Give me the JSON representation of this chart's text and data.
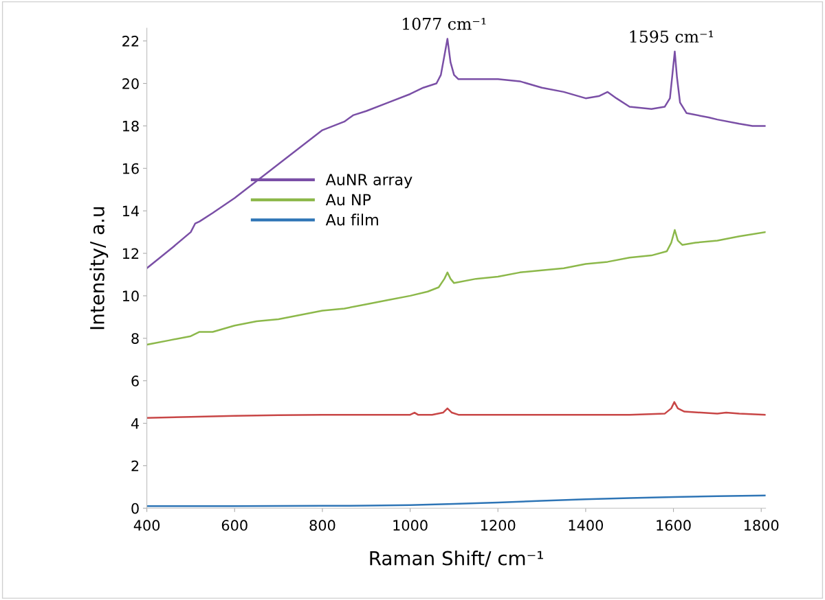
{
  "chart_data": {
    "type": "line",
    "xlabel": "Raman Shift/ cm⁻¹",
    "ylabel": "Intensity/ a.u",
    "xlim": [
      400,
      1810
    ],
    "ylim": [
      0,
      22.6
    ],
    "xticks": [
      400,
      600,
      800,
      1000,
      1200,
      1400,
      1600,
      1800
    ],
    "yticks": [
      0,
      2,
      4,
      6,
      8,
      10,
      12,
      14,
      16,
      18,
      20,
      22
    ],
    "grid": false,
    "legend": "center",
    "marker": "none",
    "line_style": "solid",
    "annotations": [
      {
        "text": "1077 cm⁻¹",
        "x": 1077,
        "y": 22.1
      },
      {
        "text": "1595 cm⁻¹",
        "x": 1595,
        "y": 21.5
      }
    ],
    "series": [
      {
        "name": "AuNR array",
        "color": "#7a4fa6",
        "x": [
          400,
          430,
          460,
          500,
          510,
          520,
          550,
          600,
          650,
          700,
          750,
          800,
          850,
          870,
          900,
          950,
          1000,
          1030,
          1060,
          1070,
          1078,
          1085,
          1092,
          1100,
          1110,
          1150,
          1200,
          1250,
          1300,
          1350,
          1400,
          1430,
          1450,
          1470,
          1500,
          1550,
          1580,
          1592,
          1598,
          1603,
          1608,
          1615,
          1630,
          1680,
          1700,
          1750,
          1780,
          1810
        ],
        "values": [
          11.3,
          11.8,
          12.3,
          13.0,
          13.4,
          13.5,
          13.9,
          14.6,
          15.4,
          16.2,
          17.0,
          17.8,
          18.2,
          18.5,
          18.7,
          19.1,
          19.5,
          19.8,
          20.0,
          20.4,
          21.3,
          22.1,
          21.0,
          20.4,
          20.2,
          20.2,
          20.2,
          20.1,
          19.8,
          19.6,
          19.3,
          19.4,
          19.6,
          19.3,
          18.9,
          18.8,
          18.9,
          19.3,
          20.5,
          21.5,
          20.3,
          19.1,
          18.6,
          18.4,
          18.3,
          18.1,
          18.0,
          18.0
        ]
      },
      {
        "name": "Au NP",
        "color": "#8cb84a",
        "x": [
          400,
          450,
          500,
          520,
          550,
          600,
          650,
          700,
          750,
          800,
          850,
          900,
          950,
          1000,
          1040,
          1065,
          1078,
          1085,
          1092,
          1100,
          1150,
          1200,
          1250,
          1300,
          1350,
          1400,
          1450,
          1500,
          1550,
          1585,
          1595,
          1603,
          1610,
          1620,
          1650,
          1700,
          1750,
          1810
        ],
        "values": [
          7.7,
          7.9,
          8.1,
          8.3,
          8.3,
          8.6,
          8.8,
          8.9,
          9.1,
          9.3,
          9.4,
          9.6,
          9.8,
          10.0,
          10.2,
          10.4,
          10.8,
          11.1,
          10.8,
          10.6,
          10.8,
          10.9,
          11.1,
          11.2,
          11.3,
          11.5,
          11.6,
          11.8,
          11.9,
          12.1,
          12.5,
          13.1,
          12.6,
          12.4,
          12.5,
          12.6,
          12.8,
          13.0
        ]
      },
      {
        "color": "#c84646",
        "x": [
          400,
          500,
          600,
          700,
          800,
          900,
          1000,
          1005,
          1010,
          1018,
          1050,
          1075,
          1085,
          1095,
          1110,
          1200,
          1300,
          1400,
          1500,
          1580,
          1595,
          1602,
          1610,
          1625,
          1700,
          1720,
          1750,
          1810
        ],
        "values": [
          4.25,
          4.3,
          4.35,
          4.38,
          4.4,
          4.4,
          4.4,
          4.45,
          4.5,
          4.4,
          4.4,
          4.5,
          4.7,
          4.5,
          4.4,
          4.4,
          4.4,
          4.4,
          4.4,
          4.45,
          4.7,
          5.0,
          4.7,
          4.55,
          4.45,
          4.5,
          4.45,
          4.4
        ]
      },
      {
        "name": "Au film",
        "color": "#2e75b6",
        "x": [
          400,
          600,
          800,
          900,
          1000,
          1100,
          1200,
          1300,
          1400,
          1500,
          1600,
          1700,
          1810
        ],
        "values": [
          0.1,
          0.1,
          0.11,
          0.12,
          0.15,
          0.2,
          0.27,
          0.35,
          0.42,
          0.48,
          0.53,
          0.57,
          0.6
        ]
      }
    ]
  }
}
